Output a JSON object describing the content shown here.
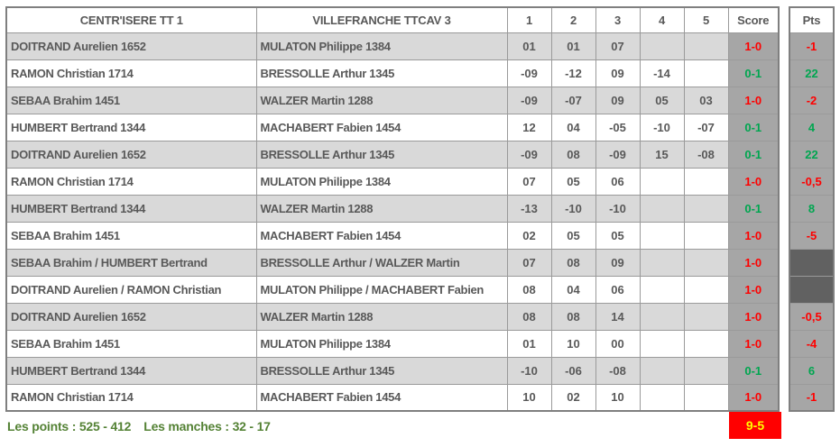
{
  "header": {
    "team_home": "CENTR'ISERE TT 1",
    "team_away": "VILLEFRANCHE TTCAV 3",
    "set_columns": [
      "1",
      "2",
      "3",
      "4",
      "5"
    ],
    "score_label": "Score",
    "pts_label": "Pts"
  },
  "rows": [
    {
      "home": "DOITRAND Aurelien 1652",
      "away": "MULATON Philippe 1384",
      "sets": [
        "01",
        "01",
        "07",
        "",
        ""
      ],
      "score": "1-0",
      "score_class": "red",
      "pts": "-1",
      "pts_class": "red",
      "pts_dark": false
    },
    {
      "home": "RAMON Christian 1714",
      "away": "BRESSOLLE Arthur 1345",
      "sets": [
        "-09",
        "-12",
        "09",
        "-14",
        ""
      ],
      "score": "0-1",
      "score_class": "green",
      "pts": "22",
      "pts_class": "green",
      "pts_dark": false
    },
    {
      "home": "SEBAA Brahim 1451",
      "away": "WALZER Martin 1288",
      "sets": [
        "-09",
        "-07",
        "09",
        "05",
        "03"
      ],
      "score": "1-0",
      "score_class": "red",
      "pts": "-2",
      "pts_class": "red",
      "pts_dark": false
    },
    {
      "home": "HUMBERT Bertrand 1344",
      "away": "MACHABERT Fabien 1454",
      "sets": [
        "12",
        "04",
        "-05",
        "-10",
        "-07"
      ],
      "score": "0-1",
      "score_class": "green",
      "pts": "4",
      "pts_class": "green",
      "pts_dark": false
    },
    {
      "home": "DOITRAND Aurelien 1652",
      "away": "BRESSOLLE Arthur 1345",
      "sets": [
        "-09",
        "08",
        "-09",
        "15",
        "-08"
      ],
      "score": "0-1",
      "score_class": "green",
      "pts": "22",
      "pts_class": "green",
      "pts_dark": false
    },
    {
      "home": "RAMON Christian 1714",
      "away": "MULATON Philippe 1384",
      "sets": [
        "07",
        "05",
        "06",
        "",
        ""
      ],
      "score": "1-0",
      "score_class": "red",
      "pts": "-0,5",
      "pts_class": "red",
      "pts_dark": false
    },
    {
      "home": "HUMBERT Bertrand 1344",
      "away": "WALZER Martin 1288",
      "sets": [
        "-13",
        "-10",
        "-10",
        "",
        ""
      ],
      "score": "0-1",
      "score_class": "green",
      "pts": "8",
      "pts_class": "green",
      "pts_dark": false
    },
    {
      "home": "SEBAA Brahim 1451",
      "away": "MACHABERT Fabien 1454",
      "sets": [
        "02",
        "05",
        "05",
        "",
        ""
      ],
      "score": "1-0",
      "score_class": "red",
      "pts": "-5",
      "pts_class": "red",
      "pts_dark": false
    },
    {
      "home": "SEBAA Brahim / HUMBERT Bertrand",
      "away": "BRESSOLLE Arthur / WALZER Martin",
      "sets": [
        "07",
        "08",
        "09",
        "",
        ""
      ],
      "score": "1-0",
      "score_class": "red",
      "pts": "",
      "pts_class": "",
      "pts_dark": true
    },
    {
      "home": "DOITRAND Aurelien / RAMON Christian",
      "away": "MULATON Philippe / MACHABERT Fabien",
      "sets": [
        "08",
        "04",
        "06",
        "",
        ""
      ],
      "score": "1-0",
      "score_class": "red",
      "pts": "",
      "pts_class": "",
      "pts_dark": true
    },
    {
      "home": "DOITRAND Aurelien 1652",
      "away": "WALZER Martin 1288",
      "sets": [
        "08",
        "08",
        "14",
        "",
        ""
      ],
      "score": "1-0",
      "score_class": "red",
      "pts": "-0,5",
      "pts_class": "red",
      "pts_dark": false
    },
    {
      "home": "SEBAA Brahim 1451",
      "away": "MULATON Philippe 1384",
      "sets": [
        "01",
        "10",
        "00",
        "",
        ""
      ],
      "score": "1-0",
      "score_class": "red",
      "pts": "-4",
      "pts_class": "red",
      "pts_dark": false
    },
    {
      "home": "HUMBERT Bertrand 1344",
      "away": "BRESSOLLE Arthur 1345",
      "sets": [
        "-10",
        "-06",
        "-08",
        "",
        ""
      ],
      "score": "0-1",
      "score_class": "green",
      "pts": "6",
      "pts_class": "green",
      "pts_dark": false
    },
    {
      "home": "RAMON Christian 1714",
      "away": "MACHABERT Fabien 1454",
      "sets": [
        "10",
        "02",
        "10",
        "",
        ""
      ],
      "score": "1-0",
      "score_class": "red",
      "pts": "-1",
      "pts_class": "red",
      "pts_dark": false
    }
  ],
  "footer": {
    "points_summary": "Les points : 525 - 412",
    "manches_summary": "Les manches : 32 - 17",
    "total_score": "9-5"
  },
  "colors": {
    "red": "#ff0000",
    "green": "#00a650",
    "text": "#595959",
    "shade": "#d9d9d9",
    "score_bg": "#a6a6a6",
    "dark_cell": "#616161",
    "total_bg": "#ff0000",
    "total_text": "#ffff00",
    "footer_text": "#548235"
  }
}
